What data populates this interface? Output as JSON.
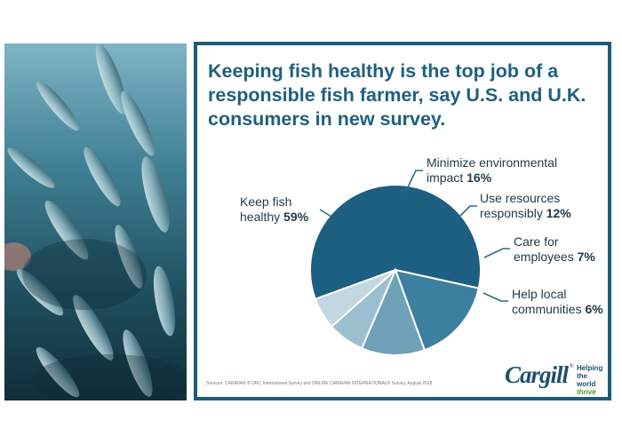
{
  "headline": "Keeping fish healthy is the top job of a responsible fish farmer, say U.S. and U.K. consumers in new survey.",
  "chart_data": {
    "type": "pie",
    "slices": [
      {
        "label": "Keep fish healthy",
        "value": 59,
        "value_label": "59%",
        "color": "#1c5f80"
      },
      {
        "label": "Minimize environmental impact",
        "value": 16,
        "value_label": "16%",
        "color": "#3d7f9e"
      },
      {
        "label": "Use resources responsibly",
        "value": 12,
        "value_label": "12%",
        "color": "#6fa1b9"
      },
      {
        "label": "Care for employees",
        "value": 7,
        "value_label": "7%",
        "color": "#9cbfd0"
      },
      {
        "label": "Help local communities",
        "value": 6,
        "value_label": "6%",
        "color": "#c3d8e2"
      }
    ],
    "labels": {
      "keep": [
        "Keep fish",
        "healthy "
      ],
      "minimize": [
        "Minimize environmental",
        "impact "
      ],
      "use": [
        "Use resources",
        "responsibly "
      ],
      "care": [
        "Care for",
        "employees "
      ],
      "help": [
        "Help local",
        "communities "
      ]
    }
  },
  "source": "Sources: CARAVAN ® ORC International Survey and ONLINE CARAVAN INTERNATIONAL® Survey, August 2018",
  "logo": {
    "wordmark": "Cargill",
    "reg_mark": "®",
    "tagline_1": "Helping",
    "tagline_2": "the world",
    "tagline_3": "thrive"
  },
  "colors": {
    "frame": "#1f5a7a",
    "headline": "#1f5f7f",
    "leader": "#2b6b8c"
  }
}
